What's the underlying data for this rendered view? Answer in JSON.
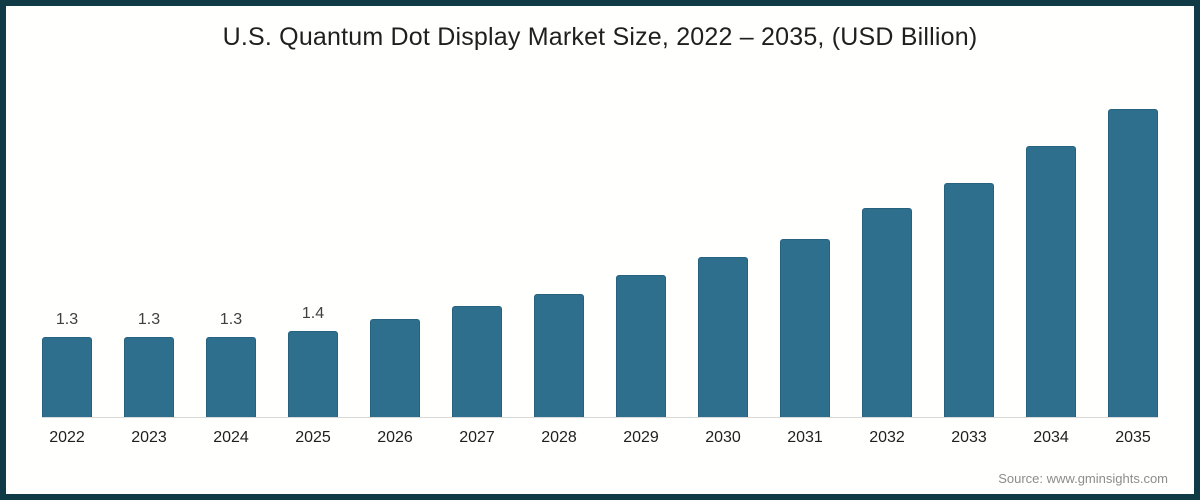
{
  "title": "U.S. Quantum Dot Display Market Size, 2022 – 2035, (USD Billion)",
  "source_note": "Source: www.gminsights.com",
  "colors": {
    "bar": "#2f6f8e",
    "bar_edge": "#26617e",
    "frame_border": "#113a47",
    "axis_line": "#d9d9d9",
    "title_text": "#1f1f1f",
    "value_label_text": "#404040",
    "source_text": "#8c8c8c"
  },
  "chart_data": {
    "type": "bar",
    "title": "U.S. Quantum Dot Display Market Size, 2022 – 2035, (USD Billion)",
    "categories": [
      "2022",
      "2023",
      "2024",
      "2025",
      "2026",
      "2027",
      "2028",
      "2029",
      "2030",
      "2031",
      "2032",
      "2033",
      "2034",
      "2035"
    ],
    "values": [
      1.3,
      1.3,
      1.3,
      1.4,
      1.6,
      1.8,
      2.0,
      2.3,
      2.6,
      2.9,
      3.4,
      3.8,
      4.4,
      5.0
    ],
    "data_labels": [
      "1.3",
      "1.3",
      "1.3",
      "1.4",
      "",
      "",
      "",
      "",
      "",
      "",
      "",
      "",
      "",
      ""
    ],
    "xlabel": "",
    "ylabel": "",
    "ylim": [
      0,
      5.2
    ],
    "grid": false,
    "legend": false,
    "bar_color": "#2f6f8e"
  }
}
